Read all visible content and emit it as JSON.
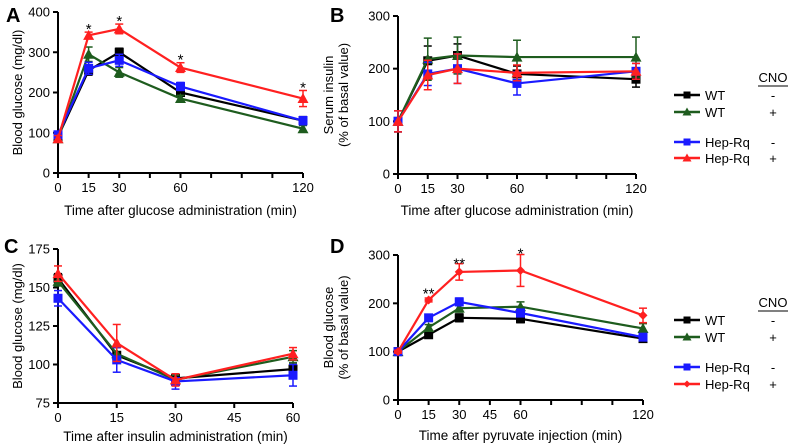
{
  "series_styles": {
    "WT_minus": {
      "color": "#000000"
    },
    "WT_plus": {
      "color": "#1e5c1e"
    },
    "Hep_minus": {
      "color": "#1a1aff"
    },
    "Hep_plus": {
      "color": "#ff2020"
    }
  },
  "chart_data": [
    {
      "panel": "A",
      "type": "line",
      "xlabel": "Time after glucose administration (min)",
      "ylabel": [
        "Blood glucose (mg/dl)"
      ],
      "xlim": [
        0,
        120
      ],
      "ylim": [
        0,
        400
      ],
      "xticks": [
        0,
        15,
        30,
        45,
        60,
        75,
        90,
        105,
        120
      ],
      "xtick_labels": [
        "0",
        "15",
        "30",
        "",
        "60",
        "",
        "",
        "",
        "120"
      ],
      "yticks": [
        0,
        100,
        200,
        300,
        400
      ],
      "ytick_labels": [
        "0",
        "100",
        "200",
        "300",
        "400"
      ],
      "x": [
        0,
        15,
        30,
        60,
        120
      ],
      "series": [
        {
          "key": "WT_minus",
          "name": "WT",
          "cno": "-",
          "marker": "square",
          "values": [
            90,
            255,
            300,
            200,
            130
          ],
          "err": [
            8,
            12,
            10,
            8,
            10
          ]
        },
        {
          "key": "WT_plus",
          "name": "WT",
          "cno": "+",
          "marker": "triangle",
          "values": [
            85,
            295,
            250,
            185,
            110
          ],
          "err": [
            8,
            18,
            12,
            8,
            8
          ]
        },
        {
          "key": "Hep_minus",
          "name": "Hep-Rq",
          "cno": "-",
          "marker": "square",
          "values": [
            95,
            260,
            280,
            215,
            130
          ],
          "err": [
            8,
            15,
            15,
            10,
            10
          ]
        },
        {
          "key": "Hep_plus",
          "name": "Hep-Rq",
          "cno": "+",
          "marker": "triangle",
          "values": [
            85,
            342,
            358,
            262,
            185
          ],
          "err": [
            8,
            8,
            12,
            12,
            20
          ]
        }
      ],
      "annotations": [
        {
          "x": 15,
          "y": 360,
          "text": "*"
        },
        {
          "x": 30,
          "y": 380,
          "text": "*"
        },
        {
          "x": 60,
          "y": 285,
          "text": "*"
        },
        {
          "x": 120,
          "y": 215,
          "text": "*"
        }
      ]
    },
    {
      "panel": "B",
      "type": "line",
      "xlabel": "Time after glucose administration (min)",
      "ylabel": [
        "Serum insulin",
        "(% of basal value)"
      ],
      "xlim": [
        0,
        120
      ],
      "ylim": [
        0,
        300
      ],
      "xticks": [
        0,
        15,
        30,
        45,
        60,
        75,
        90,
        105,
        120
      ],
      "xtick_labels": [
        "0",
        "15",
        "30",
        "",
        "60",
        "",
        "",
        "",
        "120"
      ],
      "yticks": [
        0,
        100,
        200,
        300
      ],
      "ytick_labels": [
        "0",
        "100",
        "200",
        "300"
      ],
      "x": [
        0,
        15,
        30,
        60,
        120
      ],
      "series": [
        {
          "key": "WT_minus",
          "name": "WT",
          "cno": "-",
          "marker": "square",
          "values": [
            100,
            215,
            225,
            190,
            180
          ],
          "err": [
            20,
            28,
            22,
            15,
            15
          ]
        },
        {
          "key": "WT_plus",
          "name": "WT",
          "cno": "+",
          "marker": "triangle",
          "values": [
            100,
            218,
            225,
            222,
            222
          ],
          "err": [
            20,
            40,
            35,
            32,
            38
          ]
        },
        {
          "key": "Hep_minus",
          "name": "Hep-Rq",
          "cno": "-",
          "marker": "square",
          "values": [
            100,
            190,
            200,
            172,
            195
          ],
          "err": [
            20,
            22,
            28,
            22,
            15
          ]
        },
        {
          "key": "Hep_plus",
          "name": "Hep-Rq",
          "cno": "+",
          "marker": "triangle",
          "values": [
            100,
            188,
            200,
            192,
            195
          ],
          "err": [
            20,
            28,
            28,
            15,
            15
          ]
        }
      ],
      "legend": {
        "header": "CNO",
        "placement": "right"
      },
      "annotations": []
    },
    {
      "panel": "C",
      "type": "line",
      "xlabel": "Time after insulin administration (min)",
      "ylabel": [
        "Blood glucose (mg/dl)"
      ],
      "xlim": [
        0,
        60
      ],
      "ylim": [
        75,
        175
      ],
      "xticks": [
        0,
        15,
        30,
        45,
        60
      ],
      "xtick_labels": [
        "0",
        "15",
        "30",
        "45",
        "60"
      ],
      "yticks": [
        75,
        100,
        125,
        150,
        175
      ],
      "ytick_labels": [
        "75",
        "100",
        "125",
        "150",
        "175"
      ],
      "x": [
        0,
        15,
        30,
        60
      ],
      "series": [
        {
          "key": "WT_minus",
          "name": "WT",
          "cno": "-",
          "marker": "square",
          "values": [
            156,
            106,
            91,
            97
          ],
          "err": [
            3,
            5,
            3,
            4
          ]
        },
        {
          "key": "WT_plus",
          "name": "WT",
          "cno": "+",
          "marker": "triangle",
          "values": [
            154,
            107,
            90,
            105
          ],
          "err": [
            3,
            5,
            3,
            4
          ]
        },
        {
          "key": "Hep_minus",
          "name": "Hep-Rq",
          "cno": "-",
          "marker": "square",
          "values": [
            143,
            103,
            89,
            93
          ],
          "err": [
            5,
            8,
            5,
            7
          ]
        },
        {
          "key": "Hep_plus",
          "name": "Hep-Rq",
          "cno": "+",
          "marker": "triangle",
          "values": [
            159,
            114,
            90,
            107
          ],
          "err": [
            5,
            12,
            4,
            4
          ]
        }
      ],
      "annotations": []
    },
    {
      "panel": "D",
      "type": "line",
      "xlabel": "Time after pyruvate injection (min)",
      "ylabel": [
        "Blood glucose",
        "(% of basal value)"
      ],
      "xlim": [
        0,
        120
      ],
      "ylim": [
        0,
        300
      ],
      "xticks": [
        0,
        15,
        30,
        45,
        60,
        75,
        90,
        105,
        120
      ],
      "xtick_labels": [
        "0",
        "15",
        "30",
        "45",
        "60",
        "",
        "",
        "",
        "120"
      ],
      "yticks": [
        0,
        100,
        200,
        300
      ],
      "ytick_labels": [
        "0",
        "100",
        "200",
        "300"
      ],
      "x": [
        0,
        15,
        30,
        60,
        120
      ],
      "series": [
        {
          "key": "WT_minus",
          "name": "WT",
          "cno": "-",
          "marker": "square",
          "values": [
            100,
            135,
            170,
            168,
            127
          ],
          "err": [
            3,
            6,
            8,
            8,
            5
          ]
        },
        {
          "key": "WT_plus",
          "name": "WT",
          "cno": "+",
          "marker": "triangle",
          "values": [
            100,
            150,
            190,
            193,
            148
          ],
          "err": [
            3,
            6,
            8,
            10,
            10
          ]
        },
        {
          "key": "Hep_minus",
          "name": "Hep-Rq",
          "cno": "-",
          "marker": "square",
          "values": [
            100,
            170,
            203,
            180,
            130
          ],
          "err": [
            3,
            6,
            8,
            8,
            6
          ]
        },
        {
          "key": "Hep_plus",
          "name": "Hep-Rq",
          "cno": "+",
          "marker": "diamond",
          "values": [
            100,
            207,
            265,
            268,
            175
          ],
          "err": [
            3,
            4,
            17,
            33,
            15
          ]
        }
      ],
      "legend": {
        "header": "CNO",
        "placement": "right"
      },
      "annotations": [
        {
          "x": 15,
          "y": 222,
          "text": "**"
        },
        {
          "x": 30,
          "y": 285,
          "text": "**"
        },
        {
          "x": 60,
          "y": 305,
          "text": "*"
        }
      ]
    }
  ]
}
